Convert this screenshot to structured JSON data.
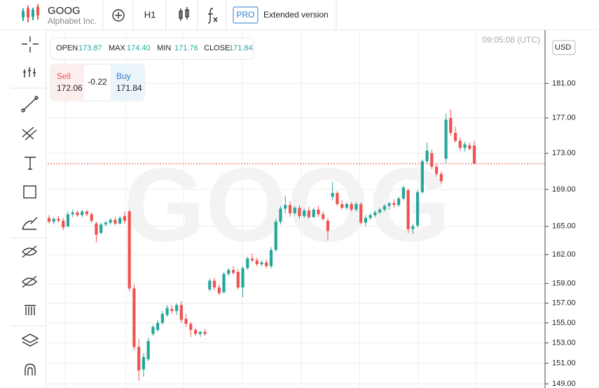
{
  "header": {
    "symbol": "GOOG",
    "company": "Alphabet Inc.",
    "timeframe": "H1",
    "pro": "PRO",
    "extended": "Extended version"
  },
  "ohlc": [
    {
      "label": "OPEN",
      "value": "173.87"
    },
    {
      "label": "MAX",
      "value": "174.40"
    },
    {
      "label": "MIN",
      "value": "171.76"
    },
    {
      "label": "CLOSE",
      "value": "171.84"
    }
  ],
  "trade": {
    "sell_label": "Sell",
    "sell": "172.06",
    "spread": "-0.22",
    "buy_label": "Buy",
    "buy": "171.84"
  },
  "time": "09:05:08 (UTC)",
  "currency": "USD",
  "chart_data": {
    "type": "candlestick",
    "log_scale": true,
    "grid": true,
    "up_color": "#26a69a",
    "down_color": "#ef5350",
    "ylim": [
      148.6,
      187.2
    ],
    "yticks": [
      {
        "value": 181,
        "label": "181.00"
      },
      {
        "value": 177,
        "label": "177.00"
      },
      {
        "value": 173,
        "label": "173.00"
      },
      {
        "value": 169,
        "label": "169.00"
      },
      {
        "value": 165,
        "label": "165.00"
      },
      {
        "value": 162,
        "label": "162.00"
      },
      {
        "value": 159,
        "label": "159.00"
      },
      {
        "value": 157,
        "label": "157.00"
      },
      {
        "value": 155,
        "label": "155.00"
      },
      {
        "value": 153,
        "label": "153.00"
      },
      {
        "value": 151,
        "label": "151.00"
      },
      {
        "value": 149,
        "label": "149.00"
      }
    ],
    "candles": [
      [
        165.9,
        166.2,
        165.3,
        165.5
      ],
      [
        165.5,
        166.0,
        165.2,
        165.8
      ],
      [
        165.8,
        166.1,
        165.4,
        165.6
      ],
      [
        165.6,
        165.9,
        164.6,
        164.9
      ],
      [
        165.0,
        166.6,
        164.9,
        166.3
      ],
      [
        166.3,
        166.8,
        166.0,
        166.5
      ],
      [
        166.5,
        166.7,
        166.0,
        166.2
      ],
      [
        166.2,
        166.8,
        166.0,
        166.6
      ],
      [
        166.6,
        166.8,
        166.1,
        166.3
      ],
      [
        166.3,
        166.5,
        165.4,
        165.6
      ],
      [
        165.3,
        165.5,
        163.3,
        164.1
      ],
      [
        164.3,
        165.4,
        164.2,
        165.2
      ],
      [
        165.2,
        165.6,
        165.0,
        165.4
      ],
      [
        165.4,
        165.9,
        165.2,
        165.7
      ],
      [
        165.7,
        166.0,
        165.1,
        165.3
      ],
      [
        165.3,
        166.1,
        165.2,
        165.9
      ],
      [
        166.1,
        166.6,
        165.3,
        165.6
      ],
      [
        166.6,
        166.8,
        158.2,
        158.5
      ],
      [
        158.5,
        158.9,
        152.3,
        152.6
      ],
      [
        152.6,
        153.4,
        149.3,
        150.3
      ],
      [
        150.4,
        152.0,
        149.7,
        151.6
      ],
      [
        151.4,
        153.5,
        151.2,
        153.2
      ],
      [
        153.9,
        154.8,
        153.7,
        154.6
      ],
      [
        154.3,
        155.3,
        154.1,
        155.0
      ],
      [
        155.0,
        156.2,
        154.8,
        155.9
      ],
      [
        155.8,
        156.8,
        155.6,
        156.5
      ],
      [
        156.4,
        156.8,
        155.9,
        156.2
      ],
      [
        156.2,
        157.0,
        155.8,
        156.8
      ],
      [
        156.8,
        157.2,
        155.0,
        155.3
      ],
      [
        155.4,
        155.9,
        154.6,
        154.9
      ],
      [
        154.9,
        155.1,
        153.6,
        154.3
      ],
      [
        154.3,
        154.5,
        153.7,
        153.9
      ],
      [
        153.9,
        154.2,
        153.6,
        154.1
      ],
      [
        154.1,
        154.4,
        153.7,
        153.9
      ],
      [
        158.4,
        159.5,
        158.2,
        159.3
      ],
      [
        159.3,
        159.6,
        158.3,
        158.6
      ],
      [
        158.6,
        158.9,
        157.8,
        158.0
      ],
      [
        158.1,
        160.2,
        158.0,
        160.0
      ],
      [
        160.0,
        160.6,
        159.8,
        160.4
      ],
      [
        160.4,
        160.8,
        159.9,
        160.1
      ],
      [
        160.2,
        160.5,
        158.4,
        158.6
      ],
      [
        158.6,
        160.8,
        157.6,
        160.6
      ],
      [
        160.6,
        161.8,
        160.4,
        161.6
      ],
      [
        161.6,
        162.1,
        161.2,
        161.4
      ],
      [
        161.4,
        161.7,
        160.8,
        161.0
      ],
      [
        161.0,
        161.4,
        160.8,
        161.2
      ],
      [
        161.2,
        161.5,
        160.6,
        160.8
      ],
      [
        160.8,
        162.8,
        160.6,
        162.5
      ],
      [
        162.5,
        165.8,
        162.3,
        165.5
      ],
      [
        165.5,
        167.2,
        165.2,
        166.9
      ],
      [
        166.9,
        168.3,
        166.4,
        167.3
      ],
      [
        167.3,
        167.7,
        166.0,
        166.4
      ],
      [
        166.4,
        167.2,
        166.2,
        167.0
      ],
      [
        167.0,
        167.3,
        165.8,
        166.1
      ],
      [
        166.1,
        166.9,
        165.9,
        166.7
      ],
      [
        166.7,
        167.1,
        165.8,
        166.0
      ],
      [
        166.0,
        167.0,
        165.9,
        166.8
      ],
      [
        166.8,
        167.2,
        166.0,
        166.3
      ],
      [
        166.3,
        166.6,
        165.6,
        165.8
      ],
      [
        165.6,
        165.9,
        163.5,
        164.5
      ],
      [
        168.2,
        169.8,
        167.8,
        168.6
      ],
      [
        168.6,
        168.8,
        167.2,
        167.4
      ],
      [
        167.4,
        167.8,
        166.8,
        167.0
      ],
      [
        167.0,
        167.6,
        166.8,
        167.4
      ],
      [
        167.4,
        167.6,
        166.6,
        166.8
      ],
      [
        166.8,
        167.6,
        166.6,
        167.4
      ],
      [
        167.4,
        167.6,
        165.2,
        165.4
      ],
      [
        165.4,
        166.2,
        165.0,
        165.9
      ],
      [
        165.9,
        166.4,
        165.7,
        166.2
      ],
      [
        166.2,
        166.7,
        166.0,
        166.5
      ],
      [
        166.5,
        167.0,
        166.3,
        166.8
      ],
      [
        166.8,
        167.4,
        166.6,
        167.2
      ],
      [
        167.2,
        167.6,
        166.8,
        167.5
      ],
      [
        167.5,
        167.9,
        167.0,
        167.3
      ],
      [
        167.3,
        168.2,
        167.1,
        168.0
      ],
      [
        168.0,
        169.4,
        167.8,
        169.2
      ],
      [
        168.9,
        169.1,
        164.3,
        164.7
      ],
      [
        164.7,
        165.3,
        164.2,
        165.0
      ],
      [
        165.1,
        168.9,
        164.9,
        168.7
      ],
      [
        168.7,
        172.3,
        168.5,
        172.1
      ],
      [
        172.1,
        174.2,
        171.9,
        173.3
      ],
      [
        173.0,
        173.4,
        171.2,
        171.5
      ],
      [
        171.5,
        171.8,
        170.4,
        170.7
      ],
      [
        170.7,
        171.0,
        169.6,
        169.9
      ],
      [
        172.4,
        177.5,
        171.9,
        176.8
      ],
      [
        177.0,
        178.0,
        175.0,
        175.3
      ],
      [
        175.3,
        176.0,
        174.2,
        174.4
      ],
      [
        174.4,
        174.8,
        173.3,
        173.6
      ],
      [
        173.6,
        174.3,
        173.2,
        174.0
      ],
      [
        173.9,
        174.2,
        173.3,
        173.5
      ],
      [
        173.87,
        174.4,
        171.76,
        171.84
      ]
    ]
  }
}
